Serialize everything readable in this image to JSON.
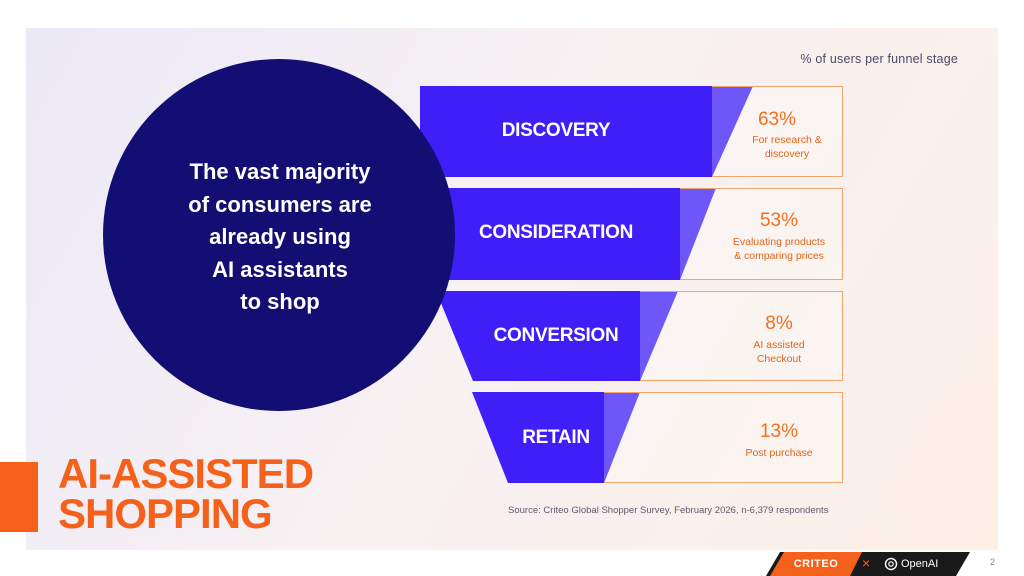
{
  "header": {
    "subtitle": "% of users per funnel stage"
  },
  "circle": {
    "lines": [
      "The vast majority",
      "of consumers are",
      "already using",
      "AI assistants",
      "to shop"
    ]
  },
  "funnel": {
    "stages": [
      {
        "label": "DISCOVERY",
        "percent": "63%",
        "desc": [
          "For research &",
          "discovery"
        ]
      },
      {
        "label": "CONSIDERATION",
        "percent": "53%",
        "desc": [
          "Evaluating products",
          "& comparing prices"
        ]
      },
      {
        "label": "CONVERSION",
        "percent": "8%",
        "desc": [
          "AI assisted",
          "Checkout"
        ]
      },
      {
        "label": "RETAIN",
        "percent": "13%",
        "desc": [
          "Post purchase"
        ]
      }
    ],
    "color": "#3f1ef7",
    "accent": "#f5611b"
  },
  "title": {
    "line1": "AI-ASSISTED",
    "line2": "SHOPPING"
  },
  "source": "Source: Criteo Global Shopper Survey, February 2026, n-6,379 respondents",
  "footer": {
    "brand1": "CRITEO",
    "separator": "×",
    "brand2": "OpenAI",
    "page": "2",
    "brand2_icon": "openai-logo-icon"
  }
}
